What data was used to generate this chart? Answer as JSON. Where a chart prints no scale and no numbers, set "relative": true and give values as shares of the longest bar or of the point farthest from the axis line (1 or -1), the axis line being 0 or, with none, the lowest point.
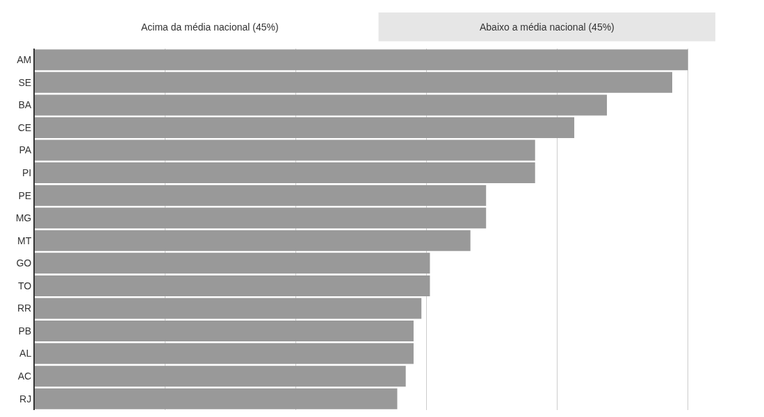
{
  "chart_data": {
    "type": "bar",
    "orientation": "horizontal",
    "relative": true,
    "grid": "x",
    "annotations": [
      "Acima da média nacional (45%)",
      "Abaixo a média nacional (45%)"
    ],
    "categories": [
      "AM",
      "SE",
      "BA",
      "CE",
      "PA",
      "PI",
      "PE",
      "MG",
      "MT",
      "GO",
      "TO",
      "RR",
      "PB",
      "AL",
      "AC",
      "RJ"
    ],
    "values": [
      1,
      0.976,
      0.876,
      0.826,
      0.766,
      0.766,
      0.691,
      0.691,
      0.667,
      0.605,
      0.605,
      0.592,
      0.58,
      0.58,
      0.568,
      0.555
    ],
    "color": "#999999"
  }
}
